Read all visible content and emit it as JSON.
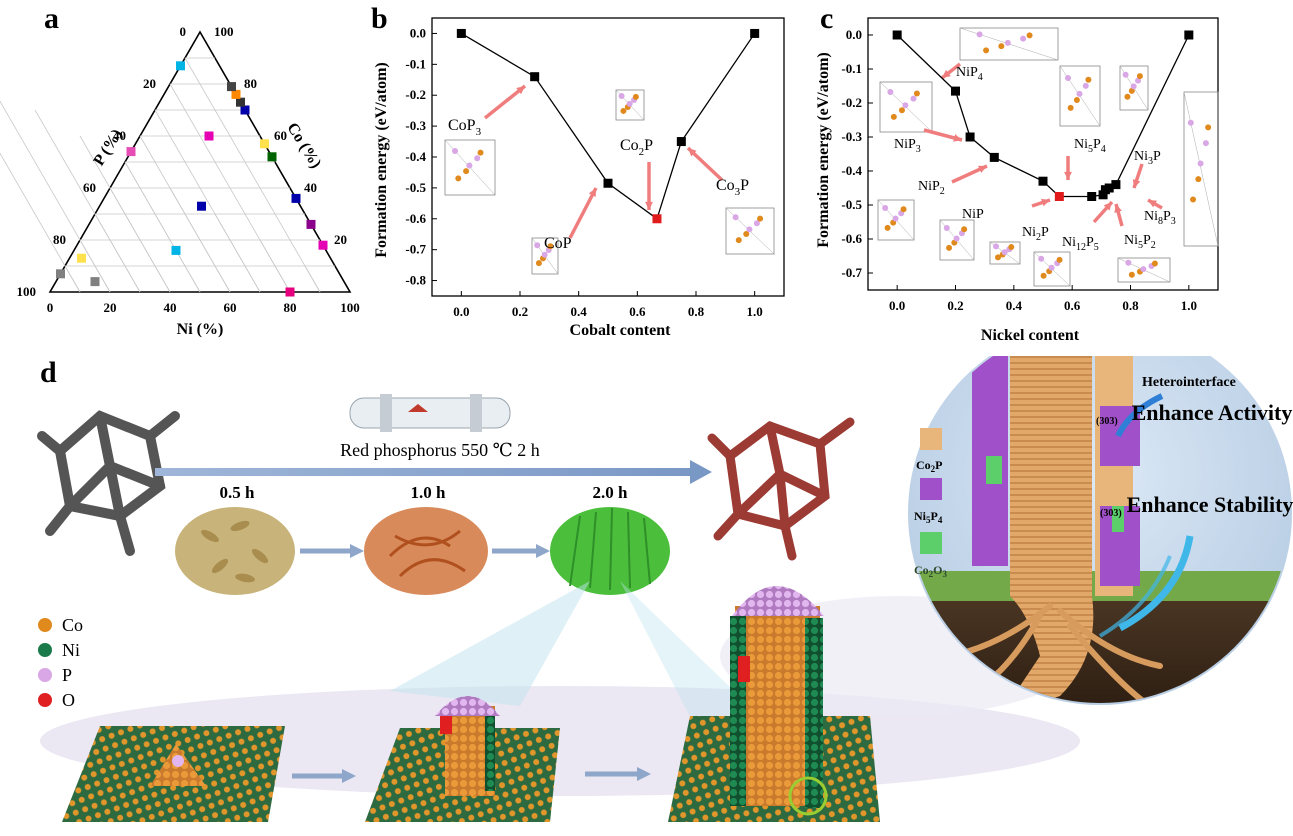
{
  "panels": {
    "a": "a",
    "b": "b",
    "c": "c",
    "d": "d"
  },
  "ternary": {
    "axis_p": "P (%)",
    "axis_co": "Co (%)",
    "axis_ni": "Ni (%)",
    "bottom_ticks": [
      "0",
      "20",
      "40",
      "60",
      "80",
      "100"
    ],
    "left_ticks": [
      "0",
      "20",
      "40",
      "60",
      "80",
      "100"
    ],
    "right_ticks": [
      "100",
      "80",
      "60",
      "40",
      "20",
      "0"
    ],
    "markers": [
      {
        "p": 93,
        "co": 0,
        "ni": 7,
        "color": "#808080"
      },
      {
        "p": 83,
        "co": 13,
        "ni": 4,
        "color": "#808080"
      },
      {
        "p": 83,
        "co": 4,
        "ni": 13,
        "color": "#ffe14d"
      },
      {
        "p": 50,
        "co": 34,
        "ni": 16,
        "color": "#00b4e6"
      },
      {
        "p": 46,
        "co": 0,
        "ni": 54,
        "color": "#e64db4"
      },
      {
        "p": 33,
        "co": 34,
        "ni": 33,
        "color": "#0000aa"
      },
      {
        "p": 20,
        "co": 80,
        "ni": 0,
        "color": "#e6007e"
      },
      {
        "p": 13,
        "co": 0,
        "ni": 87,
        "color": "#00b4e6"
      },
      {
        "p": 17,
        "co": 23,
        "ni": 60,
        "color": "#e600b4"
      },
      {
        "p": 0,
        "co": 82,
        "ni": 18,
        "color": "#e600b4"
      },
      {
        "p": 0,
        "co": 74,
        "ni": 26,
        "color": "#8b008b"
      },
      {
        "p": 0,
        "co": 64,
        "ni": 36,
        "color": "#0000aa"
      },
      {
        "p": 0,
        "co": 48,
        "ni": 52,
        "color": "#006400"
      },
      {
        "p": 0,
        "co": 43,
        "ni": 57,
        "color": "#ffe14d"
      },
      {
        "p": 0,
        "co": 30,
        "ni": 70,
        "color": "#0000aa"
      },
      {
        "p": 0,
        "co": 27,
        "ni": 73,
        "color": "#333333"
      },
      {
        "p": 0,
        "co": 24,
        "ni": 76,
        "color": "#ff8800"
      },
      {
        "p": 0,
        "co": 21,
        "ni": 79,
        "color": "#444444"
      }
    ]
  },
  "chart_data": [
    {
      "type": "line",
      "xlabel": "Cobalt content",
      "ylabel": "Formation energy (eV/atom)",
      "xlim": [
        -0.1,
        1.1
      ],
      "ylim": [
        -0.85,
        0.05
      ],
      "xticks": [
        "0.0",
        "0.2",
        "0.4",
        "0.6",
        "0.8",
        "1.0"
      ],
      "yticks": [
        "0.0",
        "-0.1",
        "-0.2",
        "-0.3",
        "-0.4",
        "-0.5",
        "-0.6",
        "-0.7",
        "-0.8"
      ],
      "x": [
        0.0,
        0.25,
        0.5,
        0.667,
        0.75,
        1.0
      ],
      "values": [
        0.0,
        -0.14,
        -0.485,
        -0.6,
        -0.35,
        0.0
      ],
      "highlight_index": 3,
      "labels": [
        {
          "base": "CoP",
          "sub": "3",
          "rest": ""
        },
        {
          "base": "CoP",
          "sub": "",
          "rest": ""
        },
        {
          "base": "Co",
          "sub": "2",
          "rest": "P"
        },
        {
          "base": "Co",
          "sub": "3",
          "rest": "P"
        }
      ]
    },
    {
      "type": "line",
      "xlabel": "Nickel content",
      "ylabel": "Formation energy (eV/atom)",
      "xlim": [
        -0.1,
        1.1
      ],
      "ylim": [
        -0.75,
        0.05
      ],
      "xticks": [
        "0.0",
        "0.2",
        "0.4",
        "0.6",
        "0.8",
        "1.0"
      ],
      "yticks": [
        "0.0",
        "-0.1",
        "-0.2",
        "-0.3",
        "-0.4",
        "-0.5",
        "-0.6",
        "-0.7"
      ],
      "x": [
        0.0,
        0.2,
        0.25,
        0.333,
        0.5,
        0.556,
        0.667,
        0.706,
        0.714,
        0.727,
        0.75,
        1.0
      ],
      "values": [
        0.0,
        -0.165,
        -0.3,
        -0.36,
        -0.43,
        -0.475,
        -0.475,
        -0.47,
        -0.455,
        -0.45,
        -0.44,
        0.0
      ],
      "highlight_index": 5,
      "labels": [
        {
          "base": "NiP",
          "sub": "4",
          "rest": ""
        },
        {
          "base": "NiP",
          "sub": "3",
          "rest": ""
        },
        {
          "base": "NiP",
          "sub": "2",
          "rest": ""
        },
        {
          "base": "NiP",
          "sub": "",
          "rest": ""
        },
        {
          "base": "Ni",
          "sub": "5",
          "rest": "P",
          "sub2": "4"
        },
        {
          "base": "Ni",
          "sub": "3",
          "rest": "P"
        },
        {
          "base": "Ni",
          "sub": "2",
          "rest": "P"
        },
        {
          "base": "Ni",
          "sub": "12",
          "rest": "P",
          "sub2": "5"
        },
        {
          "base": "Ni",
          "sub": "5",
          "rest": "P",
          "sub2": "2"
        },
        {
          "base": "Ni",
          "sub": "8",
          "rest": "P",
          "sub2": "3"
        }
      ]
    }
  ],
  "panel_d": {
    "process": "Red phosphorus 550 ℃ 2 h",
    "times": [
      "0.5 h",
      "1.0 h",
      "2.0 h"
    ],
    "legend": [
      {
        "label": "Co",
        "color": "#e08a1e"
      },
      {
        "label": "Ni",
        "color": "#1b7a4a"
      },
      {
        "label": "P",
        "color": "#d9a6e6"
      },
      {
        "label": "O",
        "color": "#e02020"
      }
    ],
    "inset": {
      "heterointerface": "Heterointerface",
      "facet1": "(303)",
      "facet2": "(303)",
      "activity": "Enhance Activity",
      "stability": "Enhance Stability",
      "legend": [
        {
          "base": "Co",
          "sub": "2",
          "rest": "P",
          "color": "#e8b57a"
        },
        {
          "base": "Ni",
          "sub": "5",
          "rest": "P",
          "sub2": "4",
          "color": "#a050c8"
        },
        {
          "base": "Co",
          "sub": "2",
          "rest": "O",
          "sub2": "3",
          "color": "#5ccf6a"
        }
      ]
    }
  }
}
